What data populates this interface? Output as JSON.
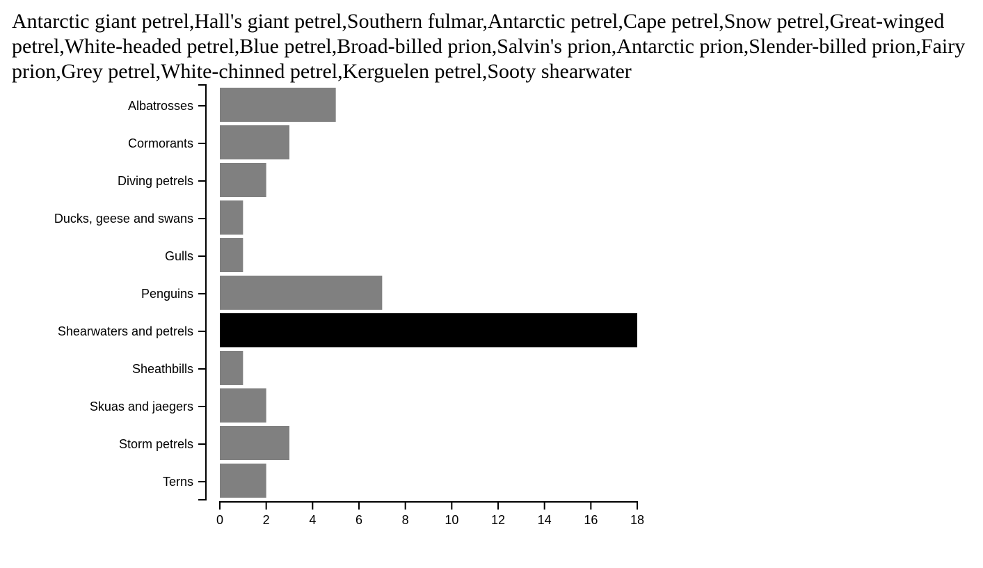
{
  "species_list": {
    "text": "Antarctic giant petrel,Hall's giant petrel,Southern fulmar,Antarctic petrel,Cape petrel,Snow petrel,Great-winged petrel,White-headed petrel,Blue petrel,Broad-billed prion,Salvin's prion,Antarctic prion,Slender-billed prion,Fairy prion,Grey petrel,White-chinned petrel,Kerguelen petrel,Sooty shearwater"
  },
  "chart_data": {
    "type": "bar",
    "orientation": "horizontal",
    "categories": [
      "Albatrosses",
      "Cormorants",
      "Diving petrels",
      "Ducks, geese and swans",
      "Gulls",
      "Penguins",
      "Shearwaters and petrels",
      "Sheathbills",
      "Skuas and jaegers",
      "Storm petrels",
      "Terns"
    ],
    "values": [
      5,
      3,
      2,
      1,
      1,
      7,
      18,
      1,
      2,
      3,
      2
    ],
    "highlighted_category": "Shearwaters and petrels",
    "xlim": [
      0,
      18
    ],
    "x_ticks": [
      0,
      2,
      4,
      6,
      8,
      10,
      12,
      14,
      16,
      18
    ],
    "grid": false,
    "colors": {
      "default_bar": "#808080",
      "highlight_bar": "#000000",
      "axis": "#000000"
    }
  }
}
